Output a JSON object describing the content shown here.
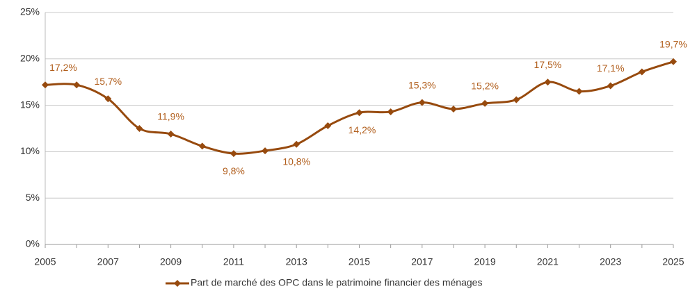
{
  "chart_data": {
    "type": "line",
    "x": [
      2005,
      2006,
      2007,
      2008,
      2009,
      2010,
      2011,
      2012,
      2013,
      2014,
      2015,
      2016,
      2017,
      2018,
      2019,
      2020,
      2021,
      2022,
      2023,
      2024,
      2025
    ],
    "series": [
      {
        "name": "Part de marché des OPC dans le patrimoine financier des ménages",
        "color": "#974a0e",
        "values": [
          17.2,
          17.2,
          15.7,
          12.5,
          11.9,
          10.6,
          9.8,
          10.1,
          10.8,
          12.8,
          14.2,
          14.3,
          15.3,
          14.6,
          15.2,
          15.6,
          17.5,
          16.5,
          17.1,
          18.6,
          19.7
        ],
        "value_labels": [
          "17,2%",
          null,
          "15,7%",
          null,
          "11,9%",
          null,
          "9,8%",
          null,
          "10,8%",
          null,
          "14,2%",
          null,
          "15,3%",
          null,
          "15,2%",
          null,
          "17,5%",
          null,
          "17,1%",
          null,
          "19,7%"
        ]
      }
    ],
    "xlim": [
      2005,
      2025
    ],
    "xticks": [
      2005,
      2007,
      2009,
      2011,
      2013,
      2015,
      2017,
      2019,
      2021,
      2023,
      2025
    ],
    "ylim": [
      0,
      25
    ],
    "yticks": [
      {
        "value": 0,
        "label": "0%"
      },
      {
        "value": 5,
        "label": "5%"
      },
      {
        "value": 10,
        "label": "10%"
      },
      {
        "value": 15,
        "label": "15%"
      },
      {
        "value": 20,
        "label": "20%"
      },
      {
        "value": 25,
        "label": "25%"
      }
    ],
    "grid": true,
    "legend": "bottom"
  }
}
